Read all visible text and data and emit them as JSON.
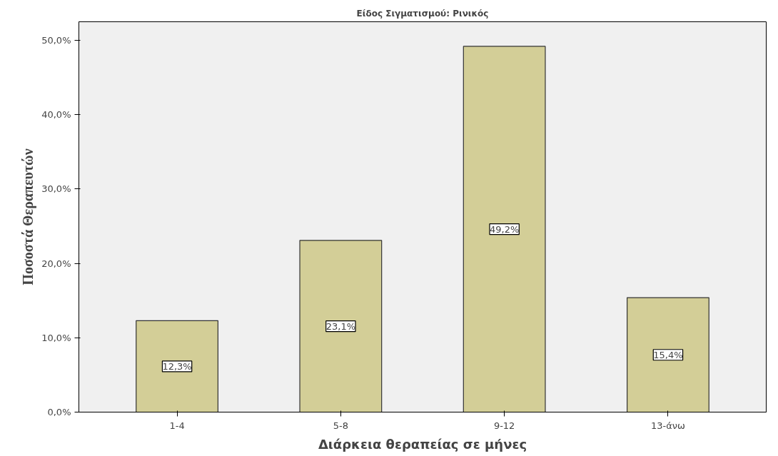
{
  "chart_data": {
    "type": "bar",
    "title": "Είδος Σιγματισμού: Ρινικός",
    "xlabel": "Διάρκεια θεραπείας σε μήνες",
    "ylabel": "Ποσοστά Θεραπευτών",
    "categories": [
      "1-4",
      "5-8",
      "9-12",
      "13-άνω"
    ],
    "values": [
      12.3,
      23.1,
      49.2,
      15.4
    ],
    "value_labels": [
      "12,3%",
      "23,1%",
      "49,2%",
      "15,4%"
    ],
    "color": "#d3ce97",
    "ylim": [
      0,
      52.5
    ],
    "yticks": [
      {
        "value": 0,
        "label": "0,0%"
      },
      {
        "value": 10,
        "label": "10,0%"
      },
      {
        "value": 20,
        "label": "20,0%"
      },
      {
        "value": 30,
        "label": "30,0%"
      },
      {
        "value": 40,
        "label": "40,0%"
      },
      {
        "value": 50,
        "label": "50,0%"
      }
    ]
  }
}
